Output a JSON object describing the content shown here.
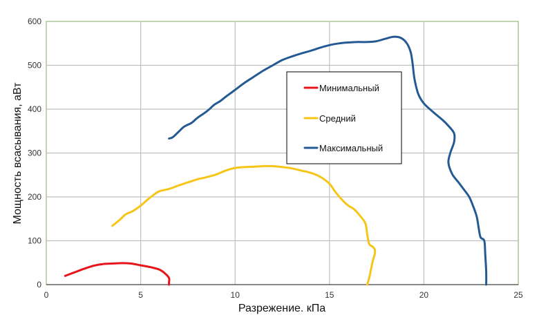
{
  "chart_data": {
    "type": "line",
    "title": "",
    "xlabel": "Разрежение. кПа",
    "ylabel": "Мощность всасывания, аВт",
    "xlim": [
      0,
      25
    ],
    "ylim": [
      0,
      600
    ],
    "xticks": [
      0,
      5,
      10,
      15,
      20,
      25
    ],
    "yticks": [
      0,
      100,
      200,
      300,
      400,
      500,
      600
    ],
    "grid": true,
    "legend_position": "inside upper-center",
    "series": [
      {
        "name": "Минимальный",
        "color": "#e8141b",
        "points": [
          [
            1.0,
            20
          ],
          [
            1.5,
            28
          ],
          [
            2.0,
            36
          ],
          [
            2.5,
            43
          ],
          [
            3.0,
            47
          ],
          [
            3.5,
            48
          ],
          [
            4.0,
            49
          ],
          [
            4.5,
            48
          ],
          [
            5.0,
            44
          ],
          [
            5.5,
            40
          ],
          [
            6.0,
            34
          ],
          [
            6.3,
            25
          ],
          [
            6.5,
            15
          ],
          [
            6.5,
            5
          ],
          [
            6.5,
            0
          ]
        ]
      },
      {
        "name": "Средний",
        "color": "#f5c518",
        "points": [
          [
            3.5,
            134
          ],
          [
            3.9,
            148
          ],
          [
            4.2,
            160
          ],
          [
            4.6,
            168
          ],
          [
            5.0,
            180
          ],
          [
            5.4,
            195
          ],
          [
            5.7,
            205
          ],
          [
            6.0,
            213
          ],
          [
            6.5,
            218
          ],
          [
            7.0,
            226
          ],
          [
            7.5,
            233
          ],
          [
            8.0,
            240
          ],
          [
            8.5,
            245
          ],
          [
            9.0,
            251
          ],
          [
            9.5,
            260
          ],
          [
            10.0,
            266
          ],
          [
            10.5,
            268
          ],
          [
            11.0,
            269
          ],
          [
            11.5,
            270
          ],
          [
            12.0,
            270
          ],
          [
            12.5,
            268
          ],
          [
            13.0,
            265
          ],
          [
            13.5,
            260
          ],
          [
            14.0,
            255
          ],
          [
            14.5,
            246
          ],
          [
            15.0,
            230
          ],
          [
            15.3,
            212
          ],
          [
            15.7,
            192
          ],
          [
            16.0,
            180
          ],
          [
            16.3,
            172
          ],
          [
            16.6,
            158
          ],
          [
            16.9,
            140
          ],
          [
            17.0,
            115
          ],
          [
            17.1,
            93
          ],
          [
            17.3,
            86
          ],
          [
            17.4,
            80
          ],
          [
            17.4,
            70
          ],
          [
            17.3,
            55
          ],
          [
            17.2,
            35
          ],
          [
            17.1,
            15
          ],
          [
            17.0,
            0
          ]
        ]
      },
      {
        "name": "Максимальный",
        "color": "#245a94",
        "points": [
          [
            6.5,
            333
          ],
          [
            6.7,
            336
          ],
          [
            7.0,
            348
          ],
          [
            7.3,
            360
          ],
          [
            7.7,
            369
          ],
          [
            8.0,
            380
          ],
          [
            8.5,
            395
          ],
          [
            8.9,
            410
          ],
          [
            9.2,
            418
          ],
          [
            9.5,
            428
          ],
          [
            10.0,
            444
          ],
          [
            10.5,
            460
          ],
          [
            11.0,
            474
          ],
          [
            11.5,
            488
          ],
          [
            12.0,
            500
          ],
          [
            12.5,
            512
          ],
          [
            13.0,
            520
          ],
          [
            13.5,
            527
          ],
          [
            14.0,
            533
          ],
          [
            14.5,
            540
          ],
          [
            15.0,
            546
          ],
          [
            15.5,
            550
          ],
          [
            16.0,
            552
          ],
          [
            16.5,
            553
          ],
          [
            17.0,
            553
          ],
          [
            17.5,
            555
          ],
          [
            18.0,
            561
          ],
          [
            18.4,
            565
          ],
          [
            18.8,
            562
          ],
          [
            19.1,
            550
          ],
          [
            19.3,
            530
          ],
          [
            19.4,
            505
          ],
          [
            19.5,
            470
          ],
          [
            19.7,
            435
          ],
          [
            20.0,
            413
          ],
          [
            20.5,
            393
          ],
          [
            21.0,
            375
          ],
          [
            21.3,
            362
          ],
          [
            21.6,
            345
          ],
          [
            21.6,
            325
          ],
          [
            21.4,
            300
          ],
          [
            21.3,
            278
          ],
          [
            21.5,
            252
          ],
          [
            21.8,
            235
          ],
          [
            22.1,
            218
          ],
          [
            22.4,
            200
          ],
          [
            22.6,
            180
          ],
          [
            22.8,
            155
          ],
          [
            22.9,
            130
          ],
          [
            23.0,
            108
          ],
          [
            23.2,
            100
          ],
          [
            23.25,
            70
          ],
          [
            23.3,
            30
          ],
          [
            23.3,
            0
          ]
        ]
      }
    ]
  }
}
